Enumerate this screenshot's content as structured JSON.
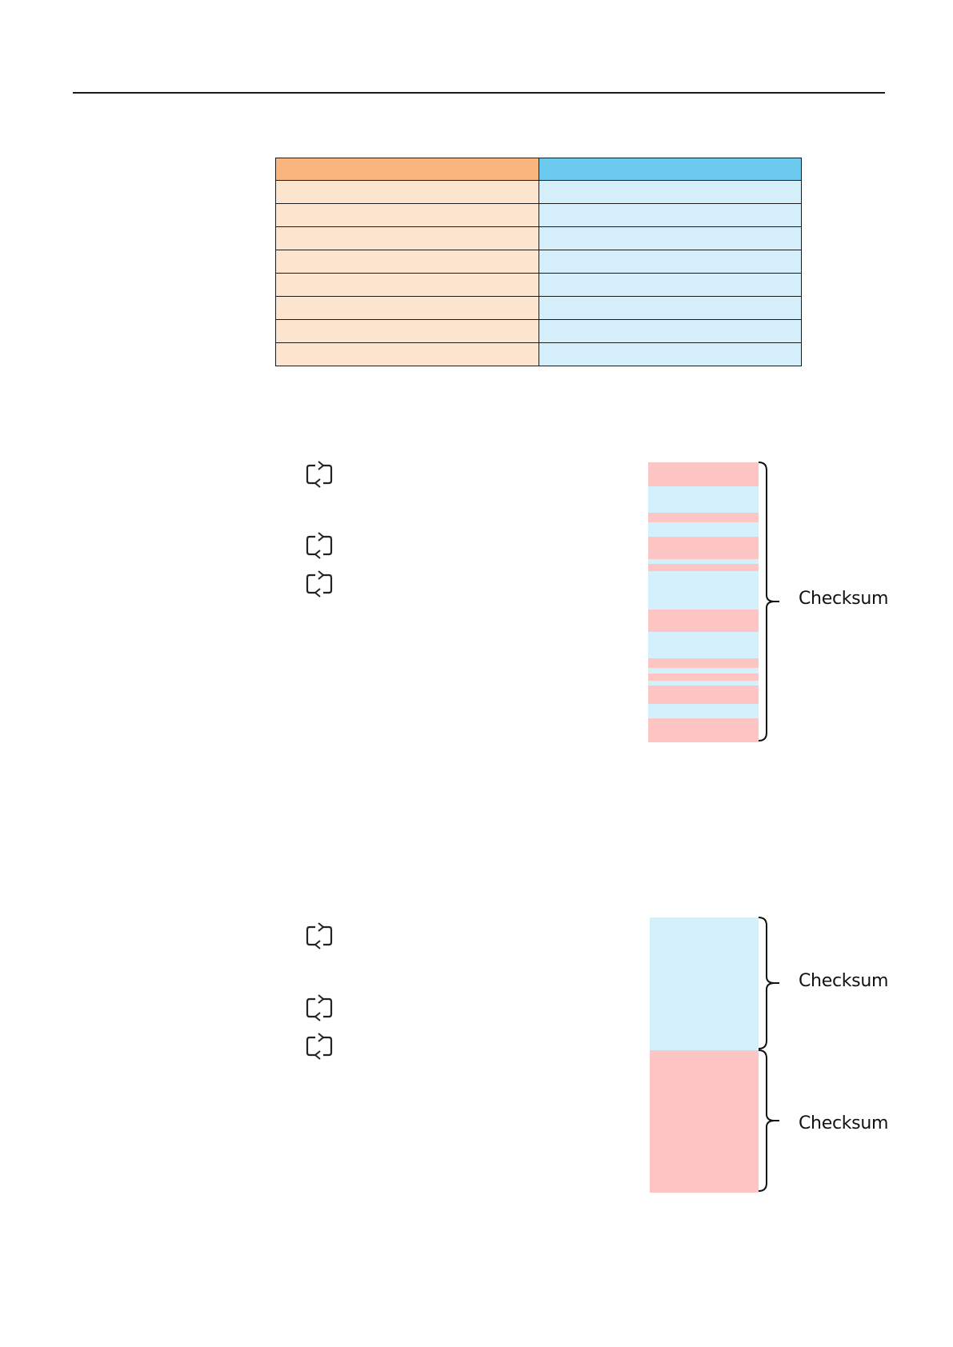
{
  "colors": {
    "header_left": "#fbb57e",
    "header_right": "#6ccaef",
    "cell_left": "#fde4cf",
    "cell_right": "#d4eff9",
    "block_pink": "#fdc5c4",
    "block_blue": "#d4f0fb"
  },
  "table": {
    "rows": 9,
    "columns": 2
  },
  "icons": {
    "loop": "cycle-arrows-icon",
    "brace": "curly-brace-icon"
  },
  "diagram_top": {
    "label": "Checksum",
    "blocks": [
      "pink",
      "blue",
      "pink",
      "blue",
      "pink",
      "blue",
      "pink",
      "blue",
      "pink",
      "blue",
      "pink",
      "blue",
      "pink",
      "blue",
      "pink",
      "blue",
      "pink"
    ]
  },
  "diagram_bottom": {
    "upper_label": "Checksum",
    "lower_label": "Checksum",
    "blocks": [
      "blue",
      "pink"
    ]
  }
}
